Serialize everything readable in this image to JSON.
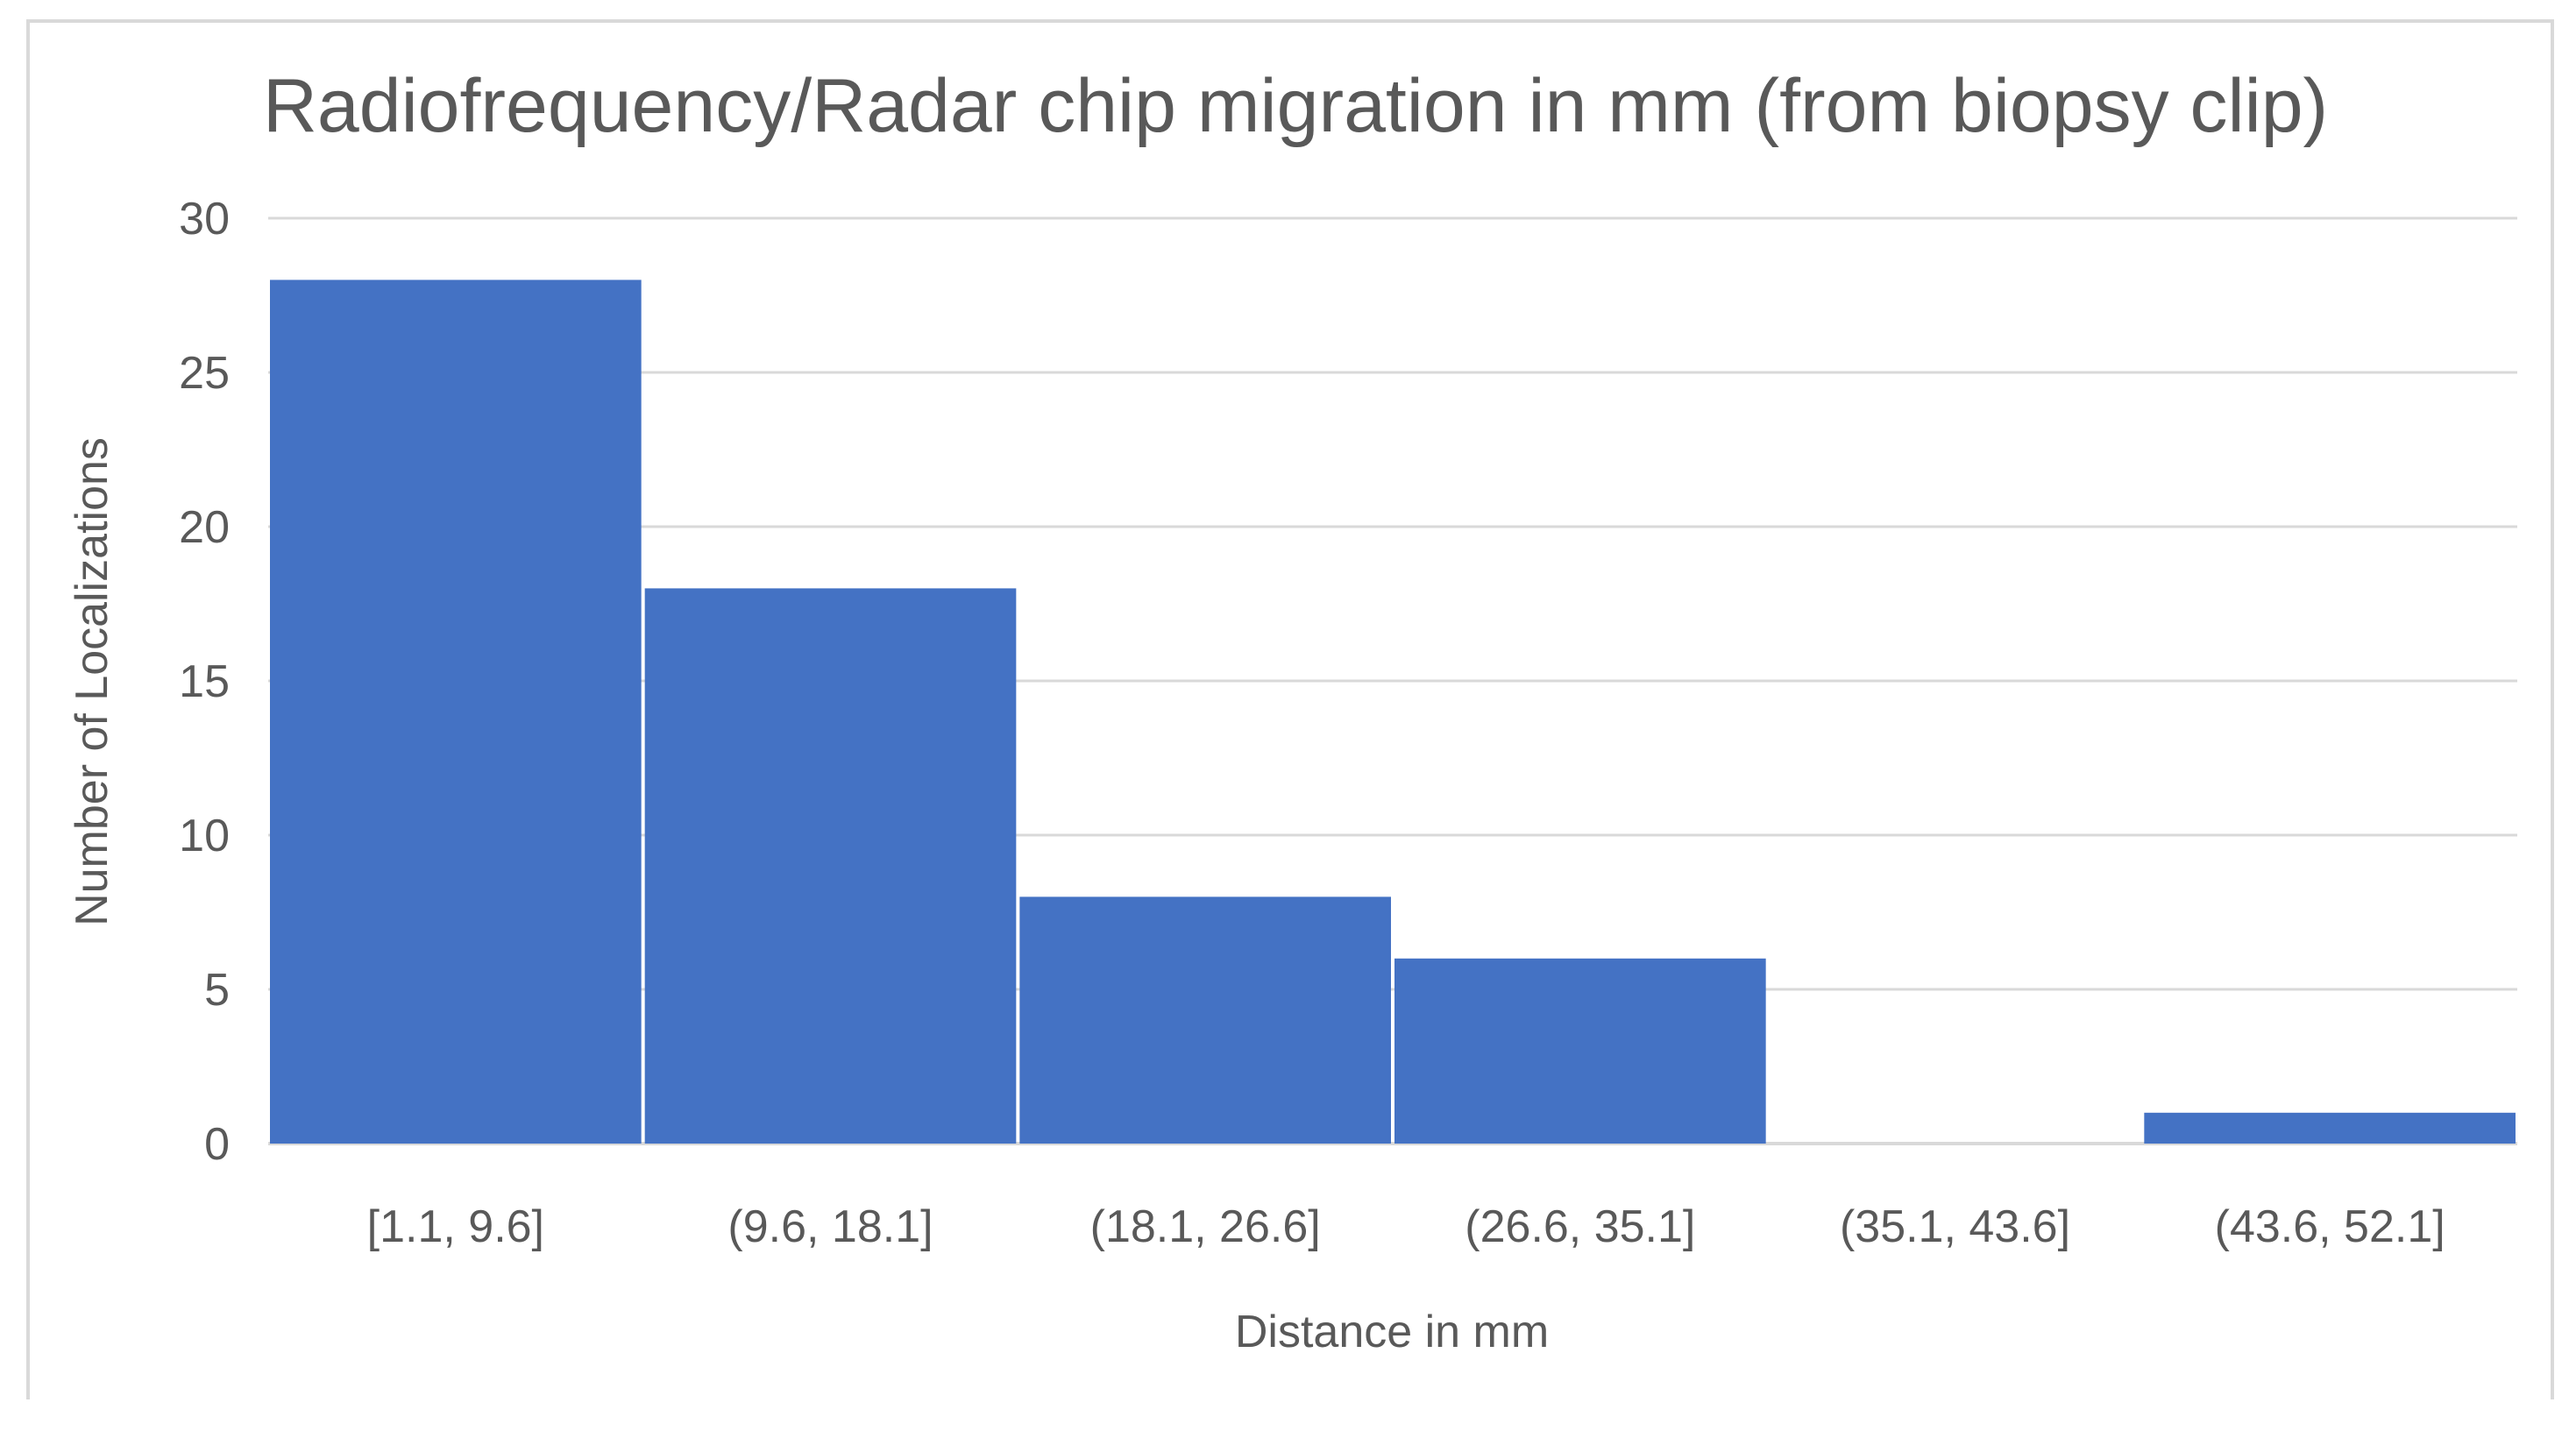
{
  "chart_data": {
    "type": "bar",
    "title": "Radiofrequency/Radar chip migration in mm (from biopsy clip)",
    "xlabel": "Distance in mm",
    "ylabel": "Number of Localizations",
    "categories": [
      "[1.1, 9.6]",
      "(9.6, 18.1]",
      "(18.1, 26.6]",
      "(26.6, 35.1]",
      "(35.1, 43.6]",
      "(43.6, 52.1]"
    ],
    "values": [
      28,
      18,
      8,
      6,
      0,
      1
    ],
    "ylim": [
      0,
      30
    ],
    "yticks": [
      0,
      5,
      10,
      15,
      20,
      25,
      30
    ],
    "grid": true,
    "legend": "none",
    "bar_color": "#4472c4",
    "grid_color": "#d9d9d9"
  }
}
